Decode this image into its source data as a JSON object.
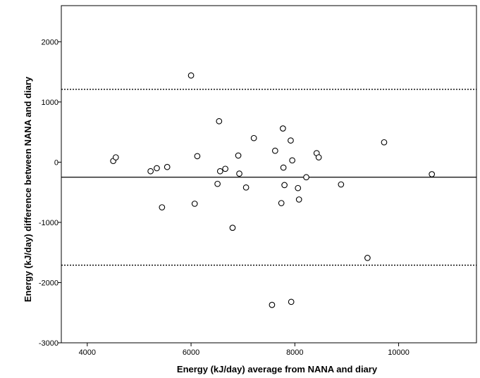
{
  "chart_data": {
    "type": "scatter",
    "title": "",
    "xlabel": "Energy (kJ/day) average from NANA and diary",
    "ylabel": "Energy (kJ/day) difference between NANA and diary",
    "xlim": [
      3500,
      11500
    ],
    "ylim": [
      -3000,
      2600
    ],
    "x_ticks": [
      4000,
      6000,
      8000,
      10000
    ],
    "y_ticks": [
      -3000,
      -2000,
      -1000,
      0,
      1000,
      2000
    ],
    "grid": false,
    "legend": "none",
    "marker": "open-circle",
    "colors": {
      "axis": "#000000",
      "marker": "#000000",
      "lines": "#000000"
    },
    "reference_lines": [
      {
        "name": "mean-difference",
        "y": -250,
        "style": "solid"
      },
      {
        "name": "upper-limit-of-agreement",
        "y": 1210,
        "style": "dotted"
      },
      {
        "name": "lower-limit-of-agreement",
        "y": -1710,
        "style": "dotted"
      }
    ],
    "points": [
      {
        "x": 4500,
        "y": 20
      },
      {
        "x": 4550,
        "y": 80
      },
      {
        "x": 5220,
        "y": -150
      },
      {
        "x": 5340,
        "y": -100
      },
      {
        "x": 5440,
        "y": -750
      },
      {
        "x": 5540,
        "y": -80
      },
      {
        "x": 6000,
        "y": 1440
      },
      {
        "x": 6070,
        "y": -690
      },
      {
        "x": 6120,
        "y": 100
      },
      {
        "x": 6510,
        "y": -360
      },
      {
        "x": 6540,
        "y": 680
      },
      {
        "x": 6560,
        "y": -150
      },
      {
        "x": 6660,
        "y": -110
      },
      {
        "x": 6800,
        "y": -1090
      },
      {
        "x": 6910,
        "y": 110
      },
      {
        "x": 6930,
        "y": -190
      },
      {
        "x": 7060,
        "y": -420
      },
      {
        "x": 7210,
        "y": 400
      },
      {
        "x": 7560,
        "y": -2370
      },
      {
        "x": 7620,
        "y": 190
      },
      {
        "x": 7740,
        "y": -680
      },
      {
        "x": 7770,
        "y": 560
      },
      {
        "x": 7780,
        "y": -90
      },
      {
        "x": 7800,
        "y": -380
      },
      {
        "x": 7920,
        "y": 360
      },
      {
        "x": 7930,
        "y": -2320
      },
      {
        "x": 7950,
        "y": 30
      },
      {
        "x": 8060,
        "y": -430
      },
      {
        "x": 8080,
        "y": -620
      },
      {
        "x": 8220,
        "y": -250
      },
      {
        "x": 8420,
        "y": 150
      },
      {
        "x": 8460,
        "y": 80
      },
      {
        "x": 8890,
        "y": -370
      },
      {
        "x": 9400,
        "y": -1590
      },
      {
        "x": 9720,
        "y": 330
      },
      {
        "x": 10640,
        "y": -200
      }
    ]
  }
}
